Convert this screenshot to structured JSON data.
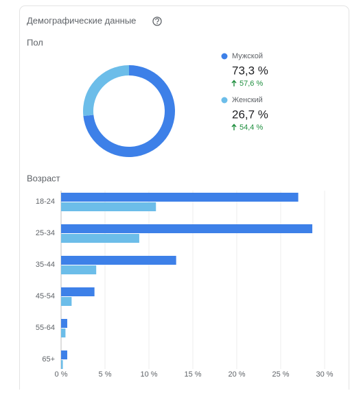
{
  "title": "Демографические данные",
  "chart_data": [
    {
      "type": "pie",
      "title": "Пол",
      "donut": true,
      "categories": [
        "Мужской",
        "Женский"
      ],
      "values": [
        73.3,
        26.7
      ],
      "value_labels": [
        "73,3 %",
        "26,7 %"
      ],
      "colors": [
        "#3d80e8",
        "#6cbde9"
      ],
      "changes": [
        57.6,
        54.4
      ],
      "change_labels": [
        "57,6 %",
        "54,4 %"
      ],
      "change_color": "#1e8e3e"
    },
    {
      "type": "bar",
      "orientation": "horizontal",
      "title": "Возраст",
      "categories": [
        "18-24",
        "25-34",
        "35-44",
        "45-54",
        "55-64",
        "65+"
      ],
      "series": [
        {
          "color": "#3d80e8",
          "values": [
            27.0,
            28.6,
            13.1,
            3.8,
            0.7,
            0.7
          ]
        },
        {
          "color": "#6cbde9",
          "values": [
            10.8,
            8.9,
            4.0,
            1.2,
            0.5,
            0.2
          ]
        }
      ],
      "xlim": [
        0,
        32
      ],
      "xticks": [
        {
          "value": 0,
          "label": "0 %"
        },
        {
          "value": 5,
          "label": "5 %"
        },
        {
          "value": 10,
          "label": "10 %"
        },
        {
          "value": 15,
          "label": "15 %"
        },
        {
          "value": 20,
          "label": "20 %"
        },
        {
          "value": 25,
          "label": "25 %"
        },
        {
          "value": 30,
          "label": "30 %"
        }
      ],
      "grid": true
    }
  ]
}
